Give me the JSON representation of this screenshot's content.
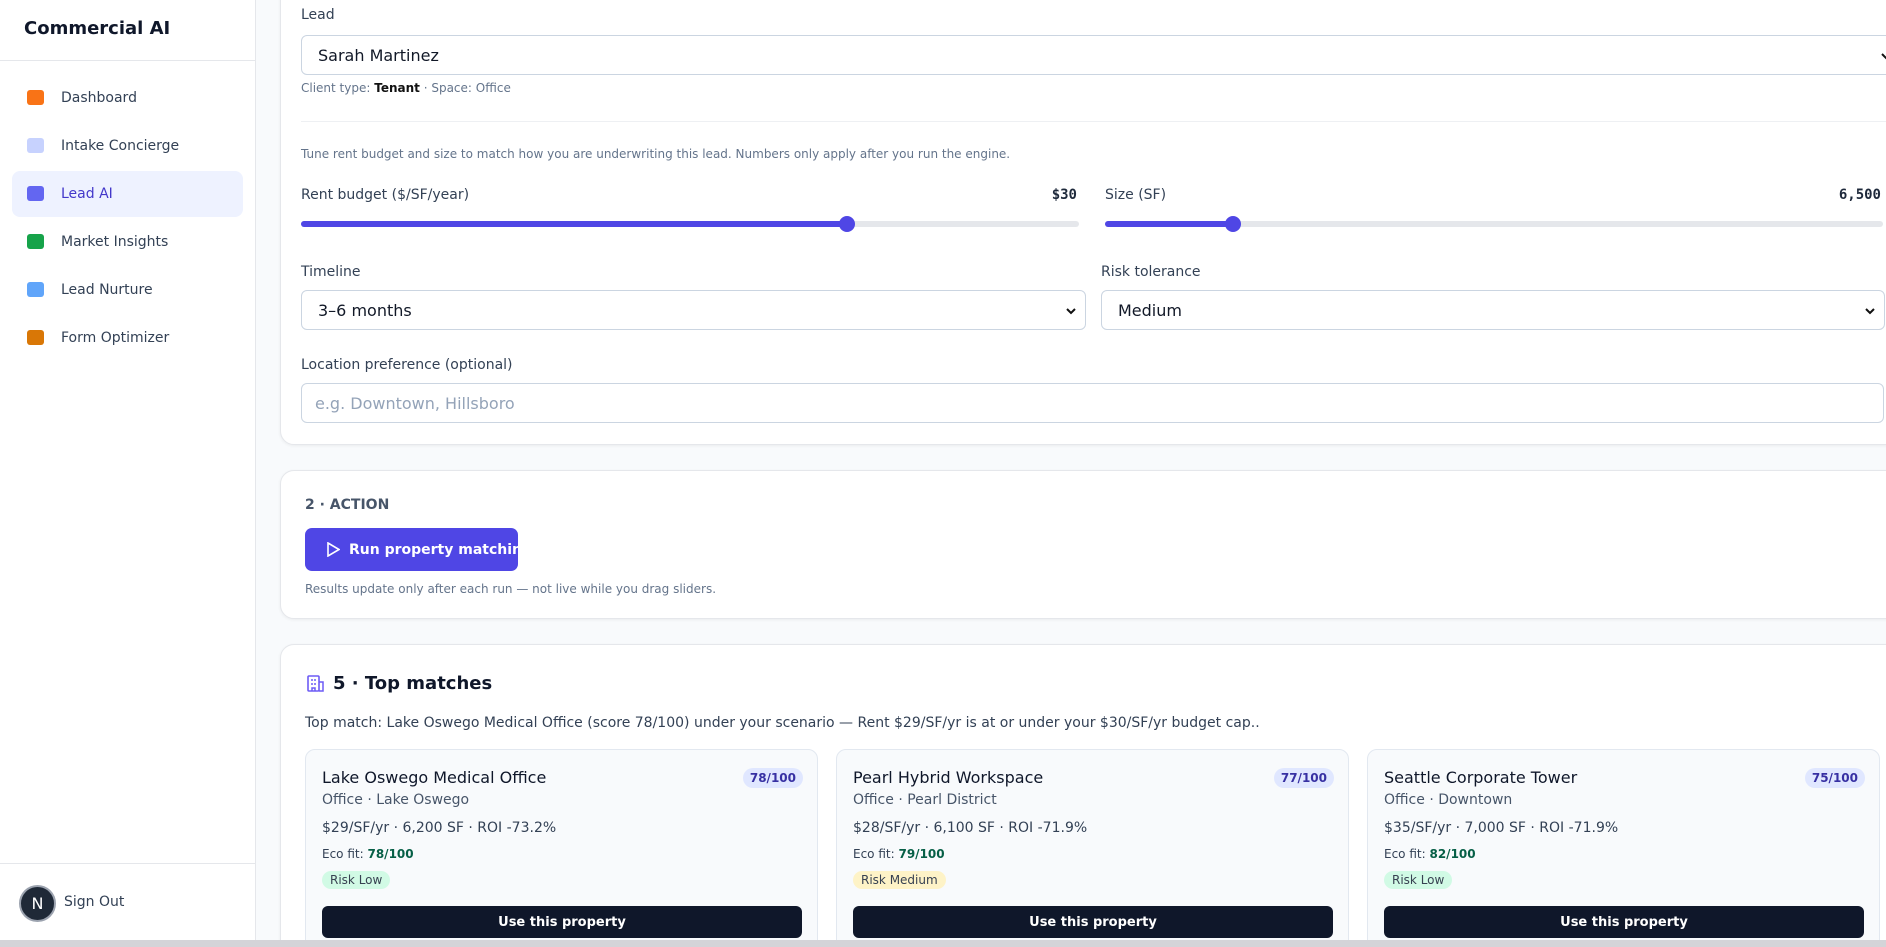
{
  "sidebar": {
    "brand": "Commercial AI",
    "nav": [
      "Dashboard",
      "Intake Concierge",
      "Lead AI",
      "Market Insights",
      "Lead Nurture",
      "Form Optimizer"
    ],
    "avatar": "N",
    "sign_out": "Sign Out"
  },
  "inputs": {
    "lead_label": "Lead",
    "lead_value": "Sarah Martinez",
    "client_type_label": "Client type:",
    "client_type": "Tenant",
    "space_label": "· Space:",
    "space": "Office",
    "hint": "Tune rent budget and size to match how you are underwriting this lead. Numbers only apply after you run the engine.",
    "rent_label": "Rent budget ($/SF/year)",
    "rent_value": "$30",
    "size_label": "Size (SF)",
    "size_value": "6,500",
    "timeline_label": "Timeline",
    "timeline_value": "3–6 months",
    "risk_label": "Risk tolerance",
    "risk_value": "Medium",
    "location_label": "Location preference (optional)",
    "location_placeholder": "e.g. Downtown, Hillsboro"
  },
  "action": {
    "heading": "2 · ACTION",
    "button": "Run property matching",
    "note": "Results update only after each run — not live while you drag sliders."
  },
  "matches": {
    "heading": "5 · Top matches",
    "summary": "Top match: Lake Oswego Medical Office (score 78/100) under your scenario — Rent $29/SF/yr is at or under your $30/SF/yr budget cap..",
    "cards": [
      {
        "name": "Lake Oswego Medical Office",
        "score": "78/100",
        "subtitle": "Office · Lake Oswego",
        "details": "$29/SF/yr · 6,200 SF · ROI -73.2%",
        "eco_label": "Eco fit:",
        "eco": "78/100",
        "risk": "Risk Low",
        "risk_color": "#d1fae5",
        "button": "Use this property"
      },
      {
        "name": "Pearl Hybrid Workspace",
        "score": "77/100",
        "subtitle": "Office · Pearl District",
        "details": "$28/SF/yr · 6,100 SF · ROI -71.9%",
        "eco_label": "Eco fit:",
        "eco": "79/100",
        "risk": "Risk Medium",
        "risk_color": "#fef3c7",
        "button": "Use this property"
      },
      {
        "name": "Seattle Corporate Tower",
        "score": "75/100",
        "subtitle": "Office · Downtown",
        "details": "$35/SF/yr · 7,000 SF · ROI -71.9%",
        "eco_label": "Eco fit:",
        "eco": "82/100",
        "risk": "Risk Low",
        "risk_color": "#d1fae5",
        "button": "Use this property"
      }
    ]
  }
}
